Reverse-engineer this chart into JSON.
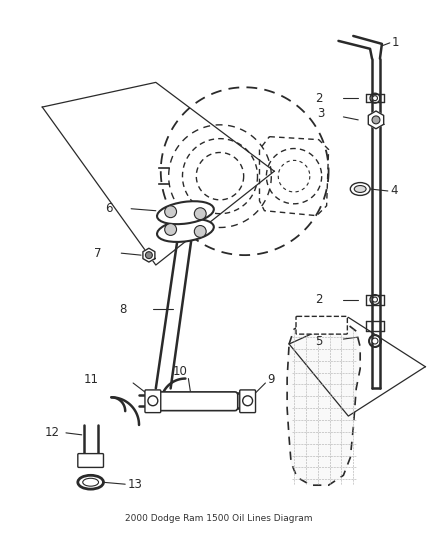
{
  "title": "2000 Dodge Ram 1500 Oil Lines Diagram",
  "bg_color": "#ffffff",
  "line_color": "#2a2a2a",
  "label_color": "#2a2a2a",
  "figsize": [
    4.38,
    5.33
  ],
  "dpi": 100
}
